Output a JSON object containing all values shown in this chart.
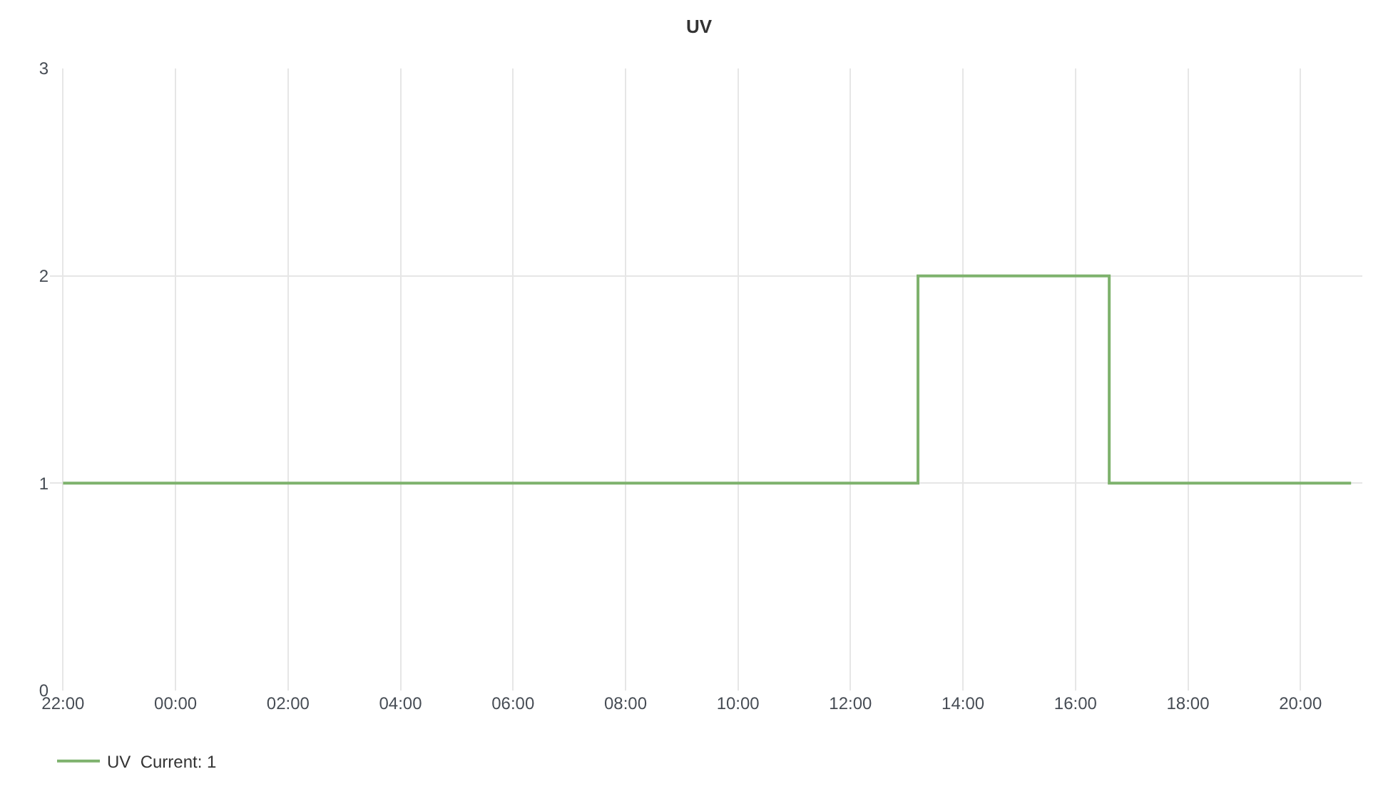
{
  "chart_data": {
    "type": "step",
    "title": "UV",
    "x": [
      "--01-01T22:00",
      "--01-02T13:12",
      "--01-02T16:36",
      "--01-02T20:54"
    ],
    "series": [
      {
        "name": "UV  Current: 1",
        "color": "#7eb26d",
        "values": [
          1,
          2,
          1,
          1
        ]
      }
    ],
    "xlim": [
      "--01-01T21:46",
      "--01-02T21:06"
    ],
    "xticks": [
      {
        "value": "--01-01T22:00",
        "label": "22:00"
      },
      {
        "value": "--01-02T00:00",
        "label": "00:00"
      },
      {
        "value": "--01-02T02:00",
        "label": "02:00"
      },
      {
        "value": "--01-02T04:00",
        "label": "04:00"
      },
      {
        "value": "--01-02T06:00",
        "label": "06:00"
      },
      {
        "value": "--01-02T08:00",
        "label": "08:00"
      },
      {
        "value": "--01-02T10:00",
        "label": "10:00"
      },
      {
        "value": "--01-02T12:00",
        "label": "12:00"
      },
      {
        "value": "--01-02T14:00",
        "label": "14:00"
      },
      {
        "value": "--01-02T16:00",
        "label": "16:00"
      },
      {
        "value": "--01-02T18:00",
        "label": "18:00"
      },
      {
        "value": "--01-02T20:00",
        "label": "20:00"
      }
    ],
    "ylim": [
      0,
      3
    ],
    "yticks": [
      0,
      1,
      2,
      3
    ],
    "grid": true,
    "legend": "bottom left",
    "marker": "none",
    "line_style": "solid"
  }
}
